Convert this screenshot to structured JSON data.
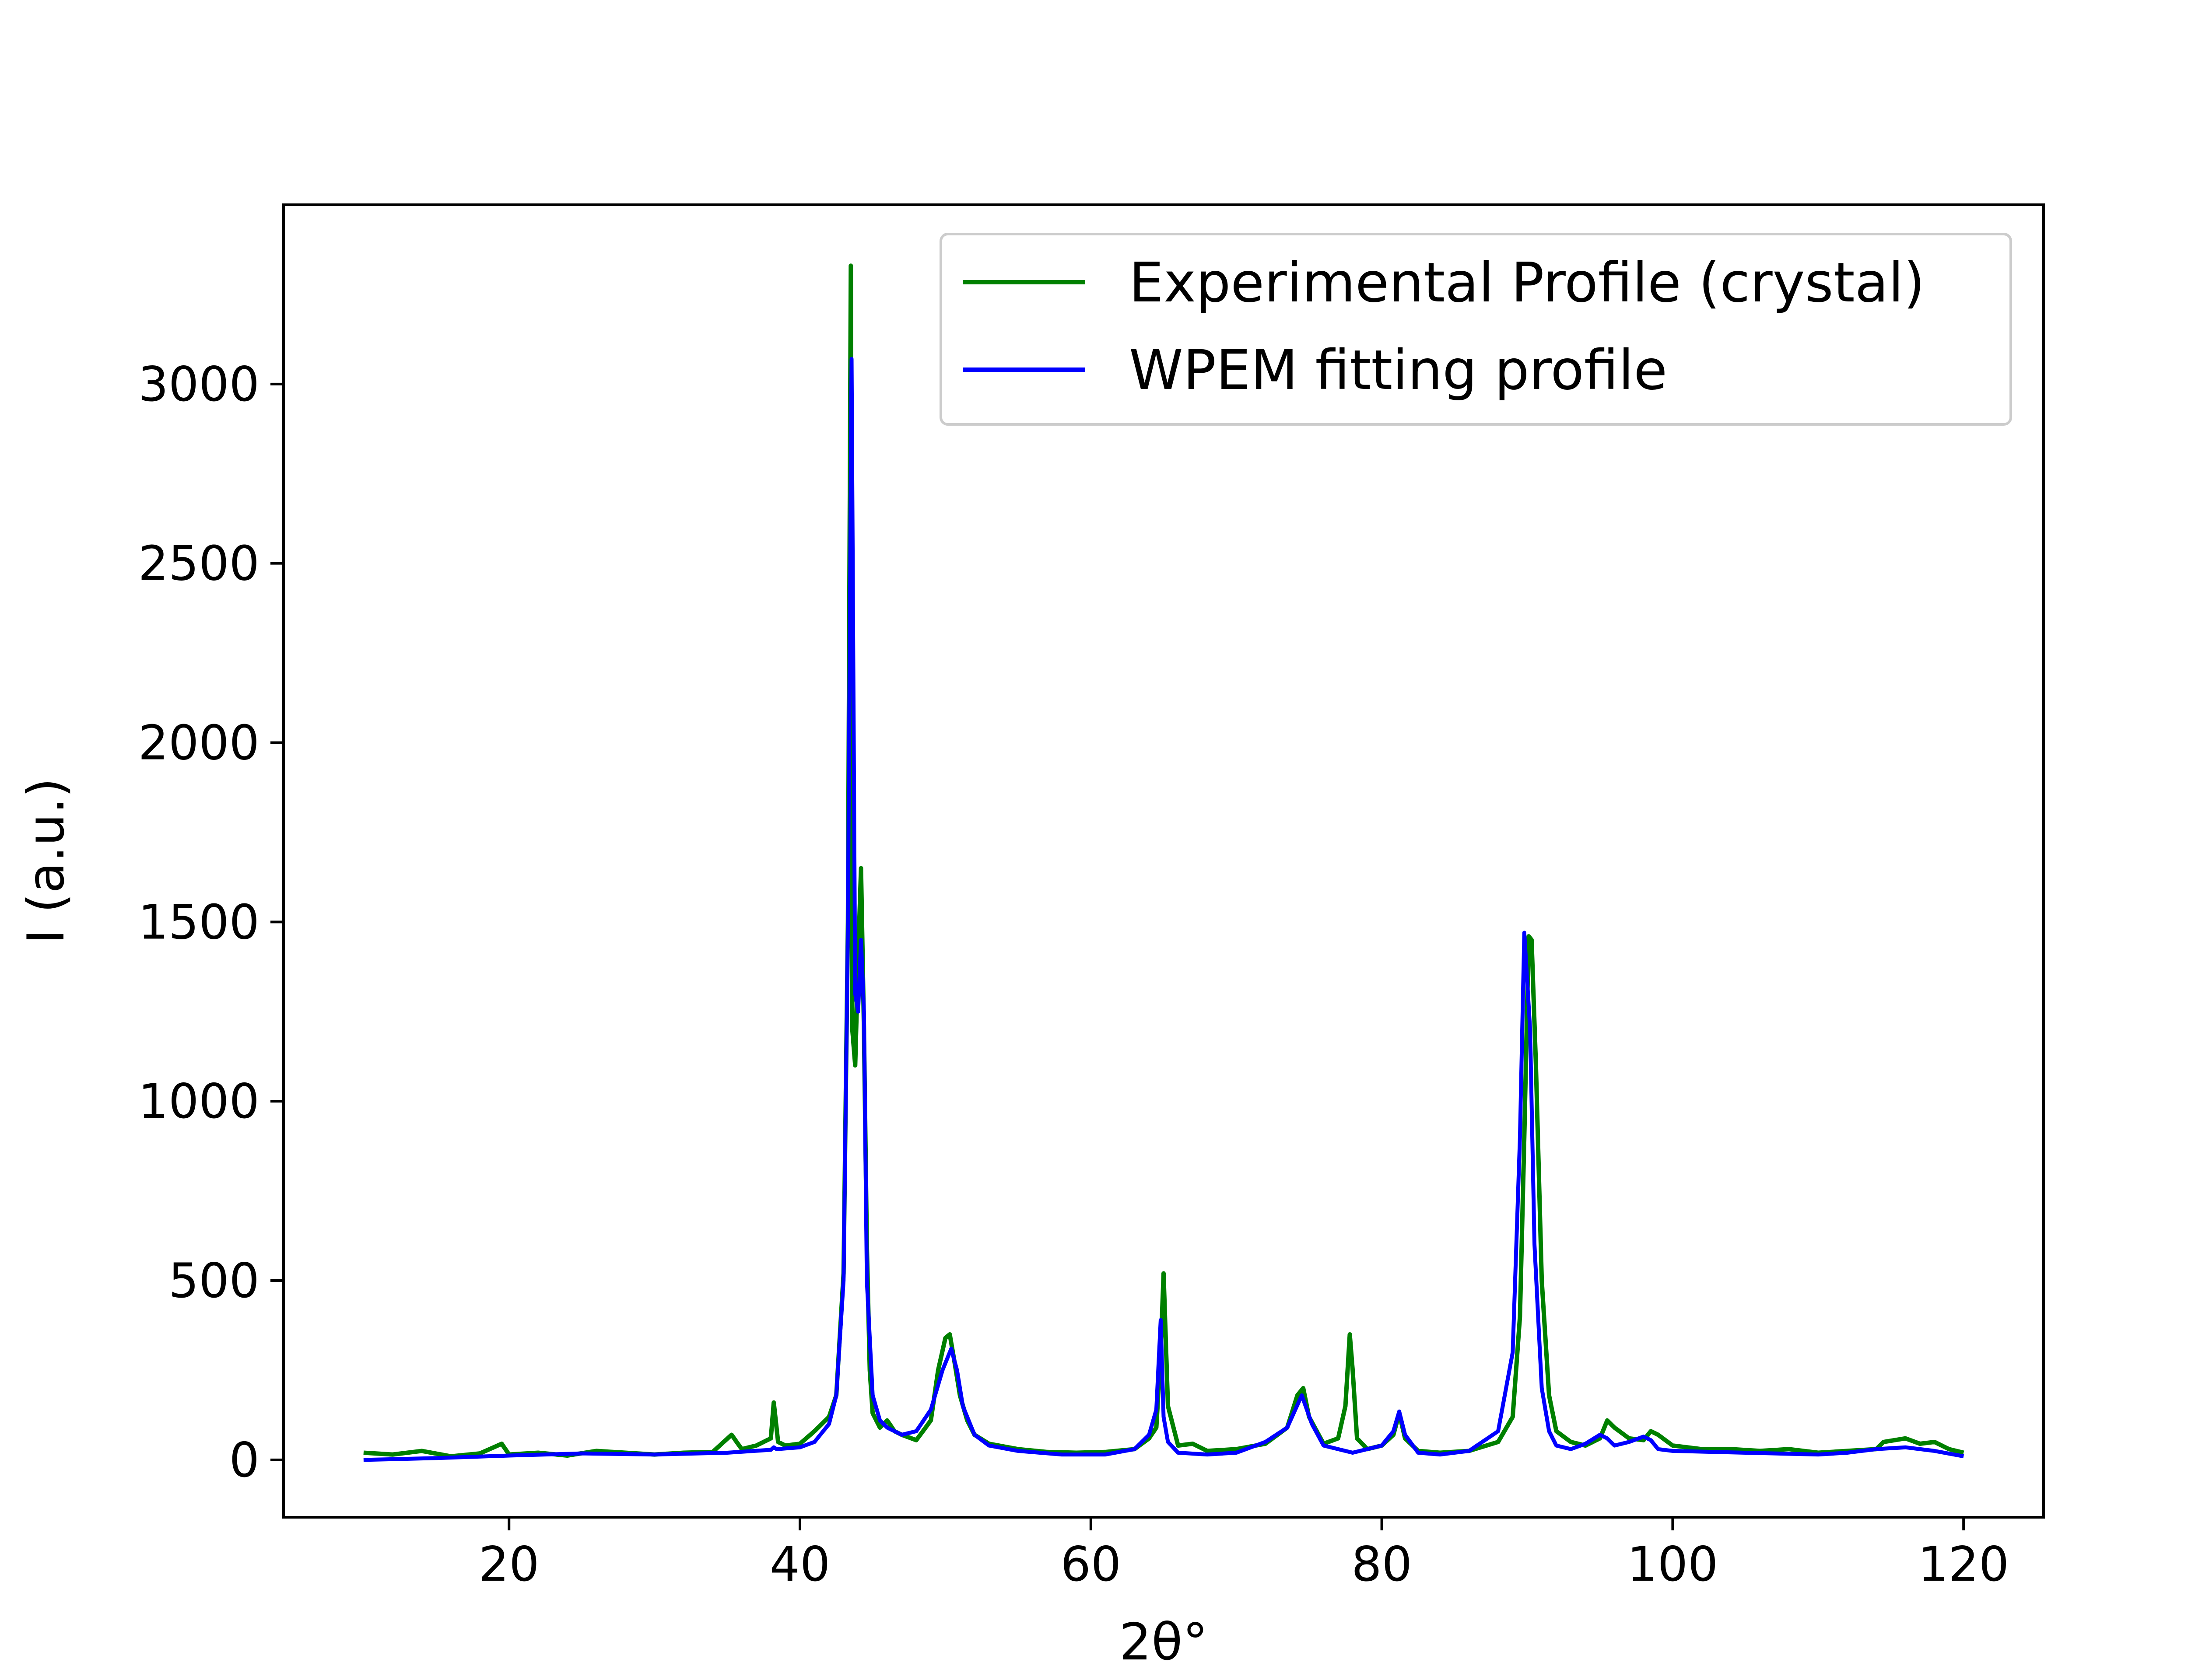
{
  "chart_data": {
    "type": "line",
    "title": "",
    "xlabel": "2θ°",
    "ylabel": "I (a.u.)",
    "xlim": [
      4.5,
      125.5
    ],
    "ylim": [
      -160,
      3500
    ],
    "xticks": [
      20,
      40,
      60,
      80,
      100,
      120
    ],
    "yticks": [
      0,
      500,
      1000,
      1500,
      2000,
      2500,
      3000
    ],
    "legend_position": "top-right",
    "grid": false,
    "series": [
      {
        "name": "Experimental Profile (crystal)",
        "color": "#008000",
        "x": [
          10,
          12,
          14,
          16,
          18,
          19.5,
          20,
          22,
          24,
          26,
          28,
          30,
          32,
          34,
          35.3,
          36,
          37,
          38,
          38.2,
          38.5,
          39,
          40,
          41,
          41.5,
          42,
          42.5,
          43,
          43.3,
          43.5,
          43.6,
          43.8,
          44.0,
          44.2,
          44.4,
          44.6,
          44.8,
          45,
          45.5,
          46,
          46.5,
          47,
          48,
          49,
          49.5,
          50,
          50.3,
          50.6,
          51,
          51.5,
          52,
          53,
          55,
          57,
          59,
          61,
          63,
          64,
          64.5,
          64.8,
          65.0,
          65.3,
          66,
          67,
          68,
          70,
          72,
          73.5,
          74.2,
          74.6,
          75,
          76,
          77,
          77.5,
          77.8,
          78.0,
          78.3,
          79,
          80,
          80.8,
          81.2,
          81.6,
          82.5,
          84,
          86,
          88,
          89,
          89.5,
          89.8,
          90.1,
          90.3,
          90.6,
          91,
          91.5,
          92,
          93,
          94,
          95,
          95.5,
          96,
          97,
          98,
          98.5,
          99,
          100,
          102,
          104,
          106,
          108,
          110,
          112,
          114,
          114.5,
          116,
          117,
          118,
          119,
          120
        ],
        "values": [
          20,
          15,
          25,
          10,
          18,
          45,
          15,
          20,
          12,
          25,
          20,
          15,
          20,
          22,
          70,
          30,
          40,
          60,
          160,
          50,
          40,
          45,
          80,
          100,
          120,
          180,
          520,
          1500,
          3330,
          1200,
          1100,
          1400,
          1650,
          1200,
          600,
          250,
          130,
          90,
          110,
          80,
          70,
          55,
          110,
          250,
          340,
          350,
          280,
          180,
          110,
          70,
          45,
          30,
          22,
          20,
          22,
          30,
          60,
          90,
          300,
          520,
          150,
          40,
          45,
          25,
          30,
          45,
          90,
          180,
          200,
          120,
          45,
          60,
          150,
          350,
          250,
          60,
          30,
          40,
          70,
          130,
          60,
          25,
          20,
          25,
          50,
          120,
          400,
          900,
          1460,
          1450,
          1100,
          500,
          180,
          80,
          50,
          40,
          60,
          110,
          90,
          60,
          55,
          80,
          70,
          40,
          30,
          30,
          25,
          30,
          20,
          25,
          30,
          50,
          60,
          45,
          50,
          30,
          20
        ]
      },
      {
        "name": "WPEM fitting profile",
        "color": "#0000ff",
        "x": [
          10,
          15,
          20,
          25,
          30,
          35,
          38,
          38.2,
          38.4,
          40,
          41,
          42,
          42.5,
          43,
          43.3,
          43.55,
          43.8,
          44.0,
          44.2,
          44.4,
          44.6,
          45,
          45.5,
          46,
          47,
          48,
          49,
          49.8,
          50.4,
          50.8,
          51.2,
          52,
          53,
          55,
          58,
          61,
          63,
          64,
          64.5,
          64.8,
          65.0,
          65.3,
          66,
          68,
          70,
          72,
          73.5,
          74.5,
          75.2,
          76,
          78,
          80,
          80.8,
          81.2,
          81.6,
          82.5,
          84,
          86,
          88,
          89,
          89.5,
          89.8,
          90.2,
          90.5,
          91,
          91.5,
          92,
          93,
          94,
          95,
          95.5,
          96,
          97,
          98,
          98.5,
          99,
          100,
          105,
          110,
          112,
          114,
          116,
          118,
          120
        ],
        "values": [
          0,
          5,
          12,
          18,
          15,
          20,
          28,
          35,
          30,
          35,
          50,
          100,
          180,
          500,
          1500,
          3070,
          1300,
          1250,
          1450,
          1250,
          500,
          180,
          110,
          90,
          70,
          80,
          140,
          250,
          310,
          250,
          150,
          70,
          40,
          25,
          15,
          15,
          30,
          70,
          140,
          390,
          120,
          50,
          20,
          15,
          20,
          50,
          90,
          180,
          100,
          40,
          20,
          40,
          80,
          135,
          70,
          20,
          15,
          25,
          80,
          300,
          900,
          1470,
          1200,
          600,
          200,
          80,
          40,
          30,
          45,
          70,
          60,
          40,
          50,
          65,
          55,
          30,
          25,
          20,
          15,
          20,
          30,
          35,
          25,
          10
        ]
      }
    ]
  }
}
